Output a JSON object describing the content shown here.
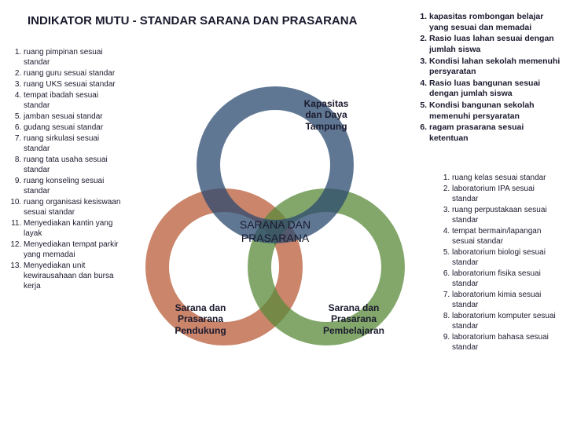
{
  "title": "INDIKATOR MUTU - STANDAR SARANA DAN PRASARANA",
  "left_items": [
    "ruang pimpinan sesuai standar",
    "ruang guru sesuai standar",
    "ruang UKS sesuai standar",
    "tempat ibadah sesuai standar",
    "jamban sesuai standar",
    "gudang sesuai standar",
    "ruang sirkulasi sesuai standar",
    "ruang tata usaha sesuai standar",
    "ruang konseling sesuai standar",
    "ruang organisasi kesiswaan sesuai standar",
    "Menyediakan kantin yang layak",
    "Menyediakan tempat parkir yang memadai",
    "Menyediakan unit kewirausahaan dan bursa kerja"
  ],
  "topright_items": [
    "kapasitas rombongan belajar yang sesuai dan memadai",
    "Rasio luas lahan sesuai dengan jumlah siswa",
    "Kondisi lahan sekolah memenuhi persyaratan",
    "Rasio luas bangunan sesuai dengan jumlah siswa",
    "Kondisi bangunan sekolah memenuhi persyaratan",
    "ragam prasarana sesuai ketentuan"
  ],
  "right_items": [
    "ruang kelas sesuai standar",
    "laboratorium IPA sesuai standar",
    "ruang perpustakaan sesuai standar",
    "tempat bermain/lapangan sesuai standar",
    "laboratorium biologi sesuai standar",
    "laboratorium fisika sesuai standar",
    "laboratorium kimia sesuai standar",
    "laboratorium komputer sesuai standar",
    "laboratorium bahasa sesuai standar"
  ],
  "circles": {
    "top": {
      "label_l1": "Kapasitas",
      "label_l2": "dan Daya",
      "label_l3": "Tampung",
      "ring_color": "#2b4a6f"
    },
    "left": {
      "label_l1": "Sarana dan",
      "label_l2": "Prasarana",
      "label_l3": "Pendukung",
      "ring_color": "#b85c3a"
    },
    "right": {
      "label_l1": "Sarana dan",
      "label_l2": "Prasarana",
      "label_l3": "Pembelajaran",
      "ring_color": "#5a8a3a"
    }
  },
  "center": {
    "l1": "SARANA DAN",
    "l2": "PRASARANA"
  },
  "style": {
    "ring_outer_r": 100,
    "ring_inner_r": 70,
    "gap_deg": 24,
    "center_color": "#1a1a2e"
  }
}
